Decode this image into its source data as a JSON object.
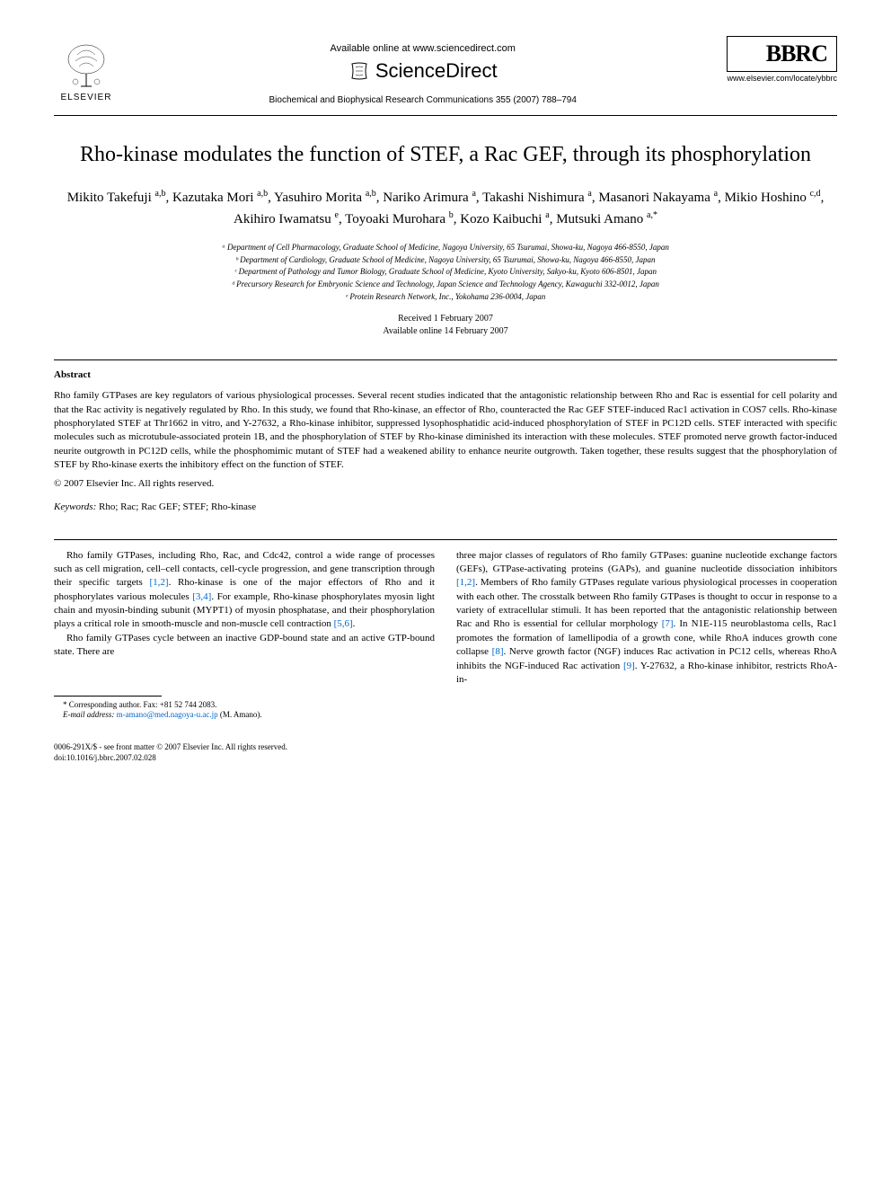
{
  "header": {
    "available_online": "Available online at www.sciencedirect.com",
    "sciencedirect": "ScienceDirect",
    "journal_line": "Biochemical and Biophysical Research Communications 355 (2007) 788–794",
    "elsevier_label": "ELSEVIER",
    "bbrc": "BBRC",
    "journal_url": "www.elsevier.com/locate/ybbrc"
  },
  "title": "Rho-kinase modulates the function of STEF, a Rac GEF, through its phosphorylation",
  "authors_html": "Mikito Takefuji <sup>a,b</sup>, Kazutaka Mori <sup>a,b</sup>, Yasuhiro Morita <sup>a,b</sup>, Nariko Arimura <sup>a</sup>, Takashi Nishimura <sup>a</sup>, Masanori Nakayama <sup>a</sup>, Mikio Hoshino <sup>c,d</sup>, Akihiro Iwamatsu <sup>e</sup>, Toyoaki Murohara <sup>b</sup>, Kozo Kaibuchi <sup>a</sup>, Mutsuki Amano <sup>a,*</sup>",
  "affiliations": [
    "ᵃ Department of Cell Pharmacology, Graduate School of Medicine, Nagoya University, 65 Tsurumai, Showa-ku, Nagoya 466-8550, Japan",
    "ᵇ Department of Cardiology, Graduate School of Medicine, Nagoya University, 65 Tsurumai, Showa-ku, Nagoya 466-8550, Japan",
    "ᶜ Department of Pathology and Tumor Biology, Graduate School of Medicine, Kyoto University, Sakyo-ku, Kyoto 606-8501, Japan",
    "ᵈ Precursory Research for Embryonic Science and Technology, Japan Science and Technology Agency, Kawaguchi 332-0012, Japan",
    "ᵉ Protein Research Network, Inc., Yokohama 236-0004, Japan"
  ],
  "dates": {
    "received": "Received 1 February 2007",
    "online": "Available online 14 February 2007"
  },
  "abstract": {
    "heading": "Abstract",
    "text": "Rho family GTPases are key regulators of various physiological processes. Several recent studies indicated that the antagonistic relationship between Rho and Rac is essential for cell polarity and that the Rac activity is negatively regulated by Rho. In this study, we found that Rho-kinase, an effector of Rho, counteracted the Rac GEF STEF-induced Rac1 activation in COS7 cells. Rho-kinase phosphorylated STEF at Thr1662 in vitro, and Y-27632, a Rho-kinase inhibitor, suppressed lysophosphatidic acid-induced phosphorylation of STEF in PC12D cells. STEF interacted with specific molecules such as microtubule-associated protein 1B, and the phosphorylation of STEF by Rho-kinase diminished its interaction with these molecules. STEF promoted nerve growth factor-induced neurite outgrowth in PC12D cells, while the phosphomimic mutant of STEF had a weakened ability to enhance neurite outgrowth. Taken together, these results suggest that the phosphorylation of STEF by Rho-kinase exerts the inhibitory effect on the function of STEF.",
    "copyright": "© 2007 Elsevier Inc. All rights reserved."
  },
  "keywords": {
    "label": "Keywords:",
    "text": " Rho; Rac; Rac GEF; STEF; Rho-kinase"
  },
  "body": {
    "col1": {
      "p1_pre": "Rho family GTPases, including Rho, Rac, and Cdc42, control a wide range of processes such as cell migration, cell–cell contacts, cell-cycle progression, and gene transcription through their specific targets ",
      "ref1": "[1,2]",
      "p1_mid1": ". Rho-kinase is one of the major effectors of Rho and it phosphorylates various molecules ",
      "ref2": "[3,4]",
      "p1_mid2": ". For example, Rho-kinase phosphorylates myosin light chain and myosin-binding subunit (MYPT1) of myosin phosphatase, and their phosphorylation plays a critical role in smooth-muscle and non-muscle cell contraction ",
      "ref3": "[5,6]",
      "p1_end": ".",
      "p2": "Rho family GTPases cycle between an inactive GDP-bound state and an active GTP-bound state. There are"
    },
    "col2": {
      "p1_pre": "three major classes of regulators of Rho family GTPases: guanine nucleotide exchange factors (GEFs), GTPase-activating proteins (GAPs), and guanine nucleotide dissociation inhibitors ",
      "ref1": "[1,2]",
      "p1_mid1": ". Members of Rho family GTPases regulate various physiological processes in cooperation with each other. The crosstalk between Rho family GTPases is thought to occur in response to a variety of extracellular stimuli. It has been reported that the antagonistic relationship between Rac and Rho is essential for cellular morphology ",
      "ref2": "[7]",
      "p1_mid2": ". In N1E-115 neuroblastoma cells, Rac1 promotes the formation of lamellipodia of a growth cone, while RhoA induces growth cone collapse ",
      "ref3": "[8]",
      "p1_mid3": ". Nerve growth factor (NGF) induces Rac activation in PC12 cells, whereas RhoA inhibits the NGF-induced Rac activation ",
      "ref4": "[9]",
      "p1_end": ". Y-27632, a Rho-kinase inhibitor, restricts RhoA-in-"
    }
  },
  "footnote": {
    "corresponding": "* Corresponding author. Fax: +81 52 744 2083.",
    "email_label": "E-mail address: ",
    "email": "m-amano@med.nagoya-u.ac.jp",
    "email_suffix": " (M. Amano)."
  },
  "footer": {
    "line1": "0006-291X/$ - see front matter © 2007 Elsevier Inc. All rights reserved.",
    "line2": "doi:10.1016/j.bbrc.2007.02.028"
  },
  "colors": {
    "link": "#0066cc",
    "text": "#000000",
    "background": "#ffffff"
  }
}
